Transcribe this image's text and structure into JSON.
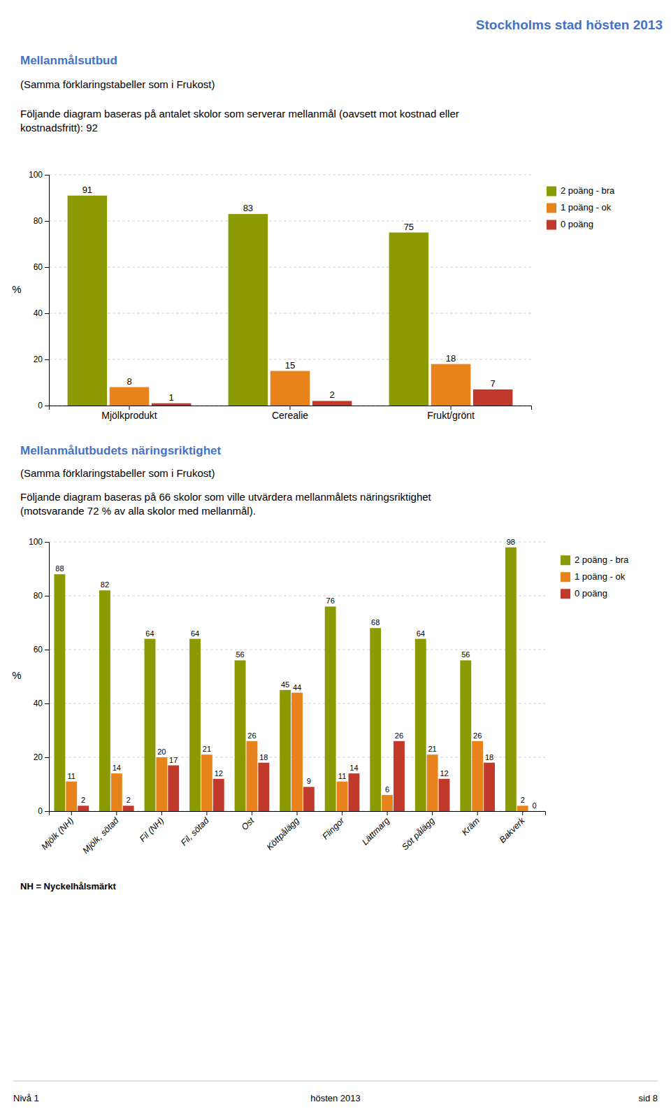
{
  "header": "Stockholms stad hösten 2013",
  "chart_data": [
    {
      "type": "bar",
      "title": "Mellanmålsutbud",
      "subtitle": "(Samma förklaringstabeller som i Frukost)",
      "description": "Följande diagram baseras på antalet skolor som serverar mellanmål (oavsett mot kostnad eller\nkostnadsfritt): 92",
      "categories": [
        "Mjölkprodukt",
        "Cerealie",
        "Frukt/grönt"
      ],
      "series": [
        {
          "name": "2 poäng - bra",
          "color": "#8B9A00",
          "values": [
            91,
            83,
            75
          ]
        },
        {
          "name": "1 poäng - ok",
          "color": "#E8821A",
          "values": [
            8,
            15,
            18
          ]
        },
        {
          "name": "0 poäng",
          "color": "#C0392B",
          "values": [
            1,
            2,
            7
          ]
        }
      ],
      "ylabel": "%",
      "ylim": [
        0,
        100
      ],
      "yticks": [
        0,
        20,
        40,
        60,
        80,
        100
      ],
      "grid": true,
      "legend": "right",
      "data_labels": true
    },
    {
      "type": "bar",
      "title": "Mellanmålutbudets näringsriktighet",
      "subtitle": "(Samma förklaringstabeller som i Frukost)",
      "description": "Följande diagram baseras på 66 skolor som ville utvärdera mellanmålets näringsriktighet\n(motsvarande 72 % av alla skolor med mellanmål).",
      "categories": [
        "Mjölk (NH)",
        "Mjölk, sötad",
        "Fil (NH)",
        "Fil, sötad",
        "Ost",
        "Köttpålägg",
        "Flingor",
        "Lättmarg",
        "Söt pålägg",
        "Kräm",
        "Bakverk"
      ],
      "series": [
        {
          "name": "2 poäng - bra",
          "color": "#8B9A00",
          "values": [
            88,
            82,
            64,
            64,
            56,
            45,
            76,
            68,
            64,
            56,
            98
          ]
        },
        {
          "name": "1 poäng - ok",
          "color": "#E8821A",
          "values": [
            11,
            14,
            20,
            21,
            26,
            44,
            11,
            6,
            21,
            26,
            2
          ]
        },
        {
          "name": "0 poäng",
          "color": "#C0392B",
          "values": [
            2,
            2,
            17,
            12,
            18,
            9,
            14,
            26,
            12,
            18,
            0
          ]
        }
      ],
      "ylabel": "%",
      "ylim": [
        0,
        100
      ],
      "yticks": [
        0,
        20,
        40,
        60,
        80,
        100
      ],
      "grid": true,
      "legend": "right",
      "data_labels": true
    }
  ],
  "footnote": "NH = Nyckelhålsmärkt",
  "footer": {
    "left": "Nivå 1",
    "center": "hösten 2013",
    "right": "sid 8"
  }
}
